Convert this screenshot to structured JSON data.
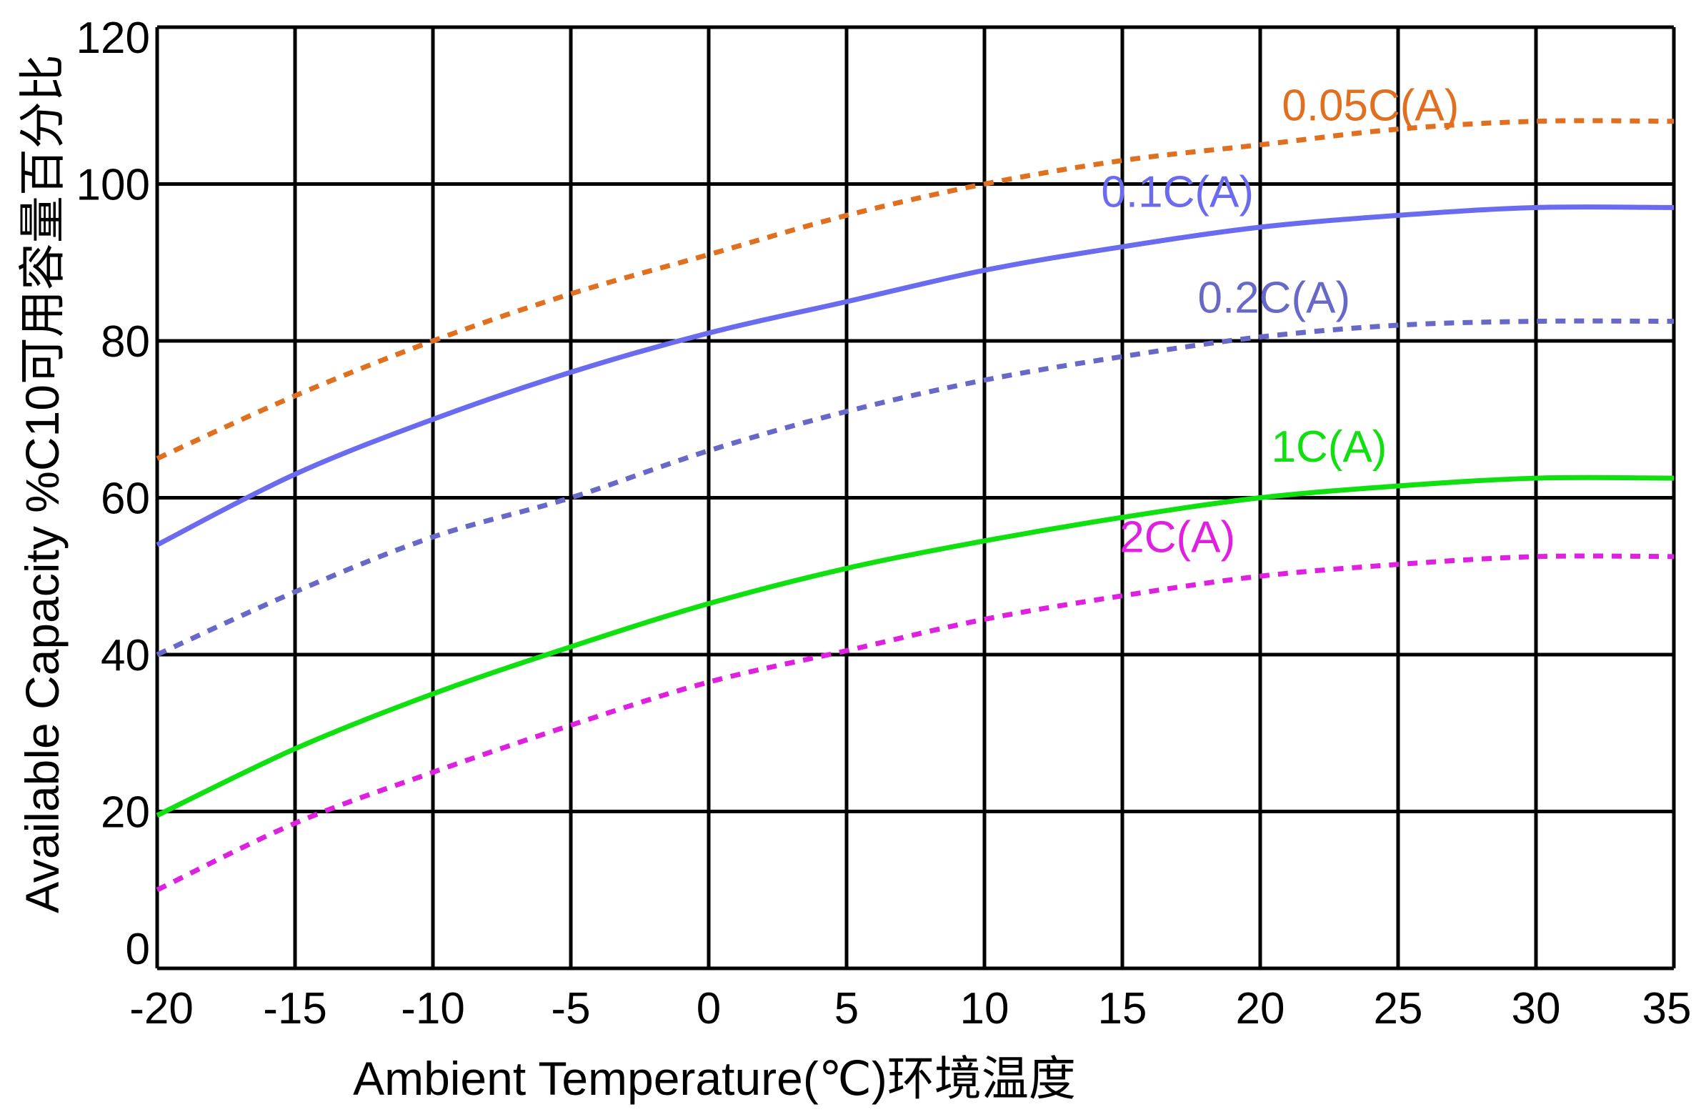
{
  "chart_data": {
    "type": "line",
    "title": "",
    "xlabel": "Ambient Temperature(℃)环境温度",
    "ylabel": "Available Capacity %C10可用容量百分比",
    "xlim": [
      -20,
      35
    ],
    "ylim": [
      0,
      120
    ],
    "xticks": [
      "-20",
      "-15",
      "-10",
      "-5",
      "0",
      "5",
      "10",
      "15",
      "20",
      "25",
      "30",
      "35"
    ],
    "yticks": [
      "0",
      "20",
      "40",
      "60",
      "80",
      "100",
      "120"
    ],
    "grid": true,
    "legend": "inline labels",
    "x": [
      -20,
      -15,
      -10,
      -5,
      0,
      5,
      10,
      15,
      20,
      25,
      30,
      35
    ],
    "series": [
      {
        "name": "0.05C(A)",
        "color": "#e07020",
        "dash": "dashed",
        "label_at": [
          24,
          107
        ],
        "values": [
          65,
          73,
          80,
          86,
          91,
          96,
          100,
          103,
          105,
          107,
          108,
          108
        ]
      },
      {
        "name": "0.1C(A)",
        "color": "#6b6bf0",
        "dash": "solid",
        "label_at": [
          17,
          96
        ],
        "values": [
          54,
          63,
          70,
          76,
          81,
          85,
          89,
          92,
          94.5,
          96,
          97,
          97
        ]
      },
      {
        "name": "0.2C(A)",
        "color": "#6868c8",
        "dash": "dashed",
        "label_at": [
          20.5,
          82.5
        ],
        "values": [
          40,
          48,
          55,
          60,
          66,
          71,
          75,
          78,
          80.5,
          82,
          82.5,
          82.5
        ]
      },
      {
        "name": "1C(A)",
        "color": "#10e010",
        "dash": "solid",
        "label_at": [
          22.5,
          63.5
        ],
        "values": [
          19.5,
          28,
          35,
          41,
          46.5,
          51,
          54.5,
          57.5,
          60,
          61.5,
          62.5,
          62.5
        ]
      },
      {
        "name": "2C(A)",
        "color": "#e020e0",
        "dash": "dashed",
        "label_at": [
          17,
          52
        ],
        "values": [
          10,
          18.5,
          25,
          31,
          36.5,
          40.5,
          44.5,
          47.5,
          50,
          51.5,
          52.5,
          52.5
        ]
      }
    ]
  }
}
